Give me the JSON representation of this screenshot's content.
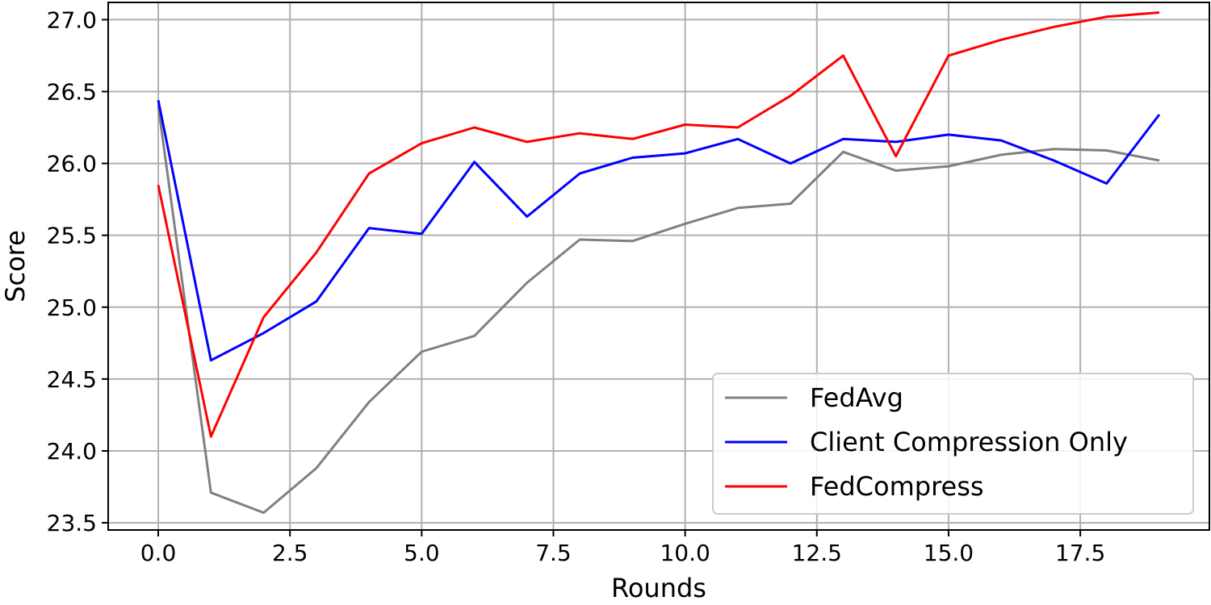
{
  "chart_data": {
    "type": "line",
    "title": "",
    "xlabel": "Rounds",
    "ylabel": "Score",
    "xlim": [
      -0.95,
      19.95
    ],
    "ylim": [
      23.45,
      27.12
    ],
    "xticks": [
      0.0,
      2.5,
      5.0,
      7.5,
      10.0,
      12.5,
      15.0,
      17.5
    ],
    "xtick_labels": [
      "0.0",
      "2.5",
      "5.0",
      "7.5",
      "10.0",
      "12.5",
      "15.0",
      "17.5"
    ],
    "yticks": [
      23.5,
      24.0,
      24.5,
      25.0,
      25.5,
      26.0,
      26.5,
      27.0
    ],
    "ytick_labels": [
      "23.5",
      "24.0",
      "24.5",
      "25.0",
      "25.5",
      "26.0",
      "26.5",
      "27.0"
    ],
    "grid": true,
    "legend_position": "bottom-right",
    "x": [
      0,
      1,
      2,
      3,
      4,
      5,
      6,
      7,
      8,
      9,
      10,
      11,
      12,
      13,
      14,
      15,
      16,
      17,
      18,
      19
    ],
    "series": [
      {
        "name": "FedAvg",
        "color": "#808080",
        "values": [
          26.4,
          23.71,
          23.57,
          23.88,
          24.34,
          24.69,
          24.8,
          25.17,
          25.47,
          25.46,
          25.58,
          25.69,
          25.72,
          26.08,
          25.95,
          25.98,
          26.06,
          26.1,
          26.09,
          26.02
        ]
      },
      {
        "name": "Client Compression Only",
        "color": "#0000ff",
        "values": [
          26.44,
          24.63,
          24.82,
          25.04,
          25.55,
          25.51,
          26.01,
          25.63,
          25.93,
          26.04,
          26.07,
          26.17,
          26.0,
          26.17,
          26.15,
          26.2,
          26.16,
          26.02,
          25.86,
          26.34
        ]
      },
      {
        "name": "FedCompress",
        "color": "#ff0000",
        "values": [
          25.85,
          24.1,
          24.93,
          25.38,
          25.93,
          26.14,
          26.25,
          26.15,
          26.21,
          26.17,
          26.27,
          26.25,
          26.47,
          26.75,
          26.05,
          26.75,
          26.86,
          26.95,
          27.02,
          27.05
        ]
      }
    ]
  }
}
